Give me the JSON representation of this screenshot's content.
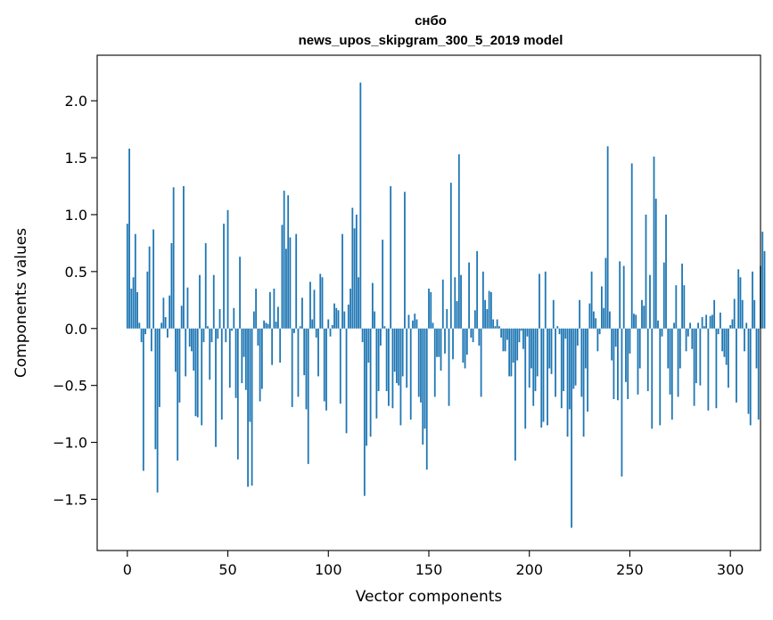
{
  "chart_data": {
    "type": "bar",
    "title": "снбо",
    "subtitle": "news_upos_skipgram_300_5_2019 model",
    "xlabel": "Vector components",
    "ylabel": "Components values",
    "xlim": [
      -15,
      315
    ],
    "ylim": [
      -1.95,
      2.4
    ],
    "xticks": [
      0,
      50,
      100,
      150,
      200,
      250,
      300
    ],
    "yticks": [
      -1.5,
      -1.0,
      -0.5,
      0.0,
      0.5,
      1.0,
      1.5,
      2.0
    ],
    "ytick_labels": [
      "−1.5",
      "−1.0",
      "−0.5",
      "0.0",
      "0.5",
      "1.0",
      "1.5",
      "2.0"
    ],
    "bar_color": "#1f77b4",
    "grid": false,
    "legend": "none",
    "values": [
      0.92,
      1.58,
      0.35,
      0.45,
      0.83,
      0.32,
      0.05,
      -0.12,
      -1.25,
      -0.05,
      0.5,
      0.72,
      -0.2,
      0.87,
      -1.06,
      -1.44,
      -0.69,
      0.05,
      0.27,
      0.1,
      -0.08,
      0.29,
      0.75,
      1.24,
      -0.38,
      -1.16,
      -0.65,
      0.2,
      1.25,
      -0.42,
      0.36,
      -0.16,
      -0.2,
      -0.37,
      -0.77,
      -0.78,
      0.47,
      -0.85,
      -0.12,
      0.75,
      0.02,
      -0.45,
      -0.12,
      0.47,
      -1.04,
      -0.09,
      0.17,
      -0.8,
      0.92,
      -0.12,
      1.04,
      -0.52,
      -0.02,
      0.18,
      -0.61,
      -1.15,
      0.63,
      -0.48,
      -0.25,
      -0.54,
      -1.39,
      -0.82,
      -1.38,
      0.15,
      0.35,
      -0.15,
      -0.64,
      -0.53,
      0.07,
      0.05,
      0.04,
      0.32,
      -0.32,
      0.35,
      0.06,
      0.19,
      -0.3,
      0.91,
      1.21,
      0.7,
      1.17,
      0.8,
      -0.69,
      -0.04,
      0.83,
      -0.6,
      0.02,
      0.27,
      -0.41,
      -0.71,
      -1.19,
      0.41,
      0.08,
      0.34,
      -0.08,
      -0.42,
      0.48,
      0.45,
      -0.64,
      -0.72,
      0.08,
      -0.07,
      0.03,
      0.22,
      0.18,
      0.16,
      -0.66,
      0.83,
      0.15,
      -0.92,
      0.21,
      0.35,
      1.06,
      0.88,
      1.0,
      0.45,
      2.16,
      -0.12,
      -1.47,
      -1.03,
      -0.3,
      -0.95,
      0.4,
      0.15,
      -0.79,
      -0.55,
      -0.15,
      0.78,
      0.02,
      -0.55,
      -0.68,
      1.25,
      -0.7,
      -0.38,
      -0.48,
      -0.5,
      -0.85,
      -0.42,
      1.2,
      -0.52,
      0.12,
      -0.8,
      0.07,
      0.13,
      0.08,
      -0.6,
      -0.65,
      -1.02,
      -0.88,
      -1.24,
      0.35,
      0.32,
      0.05,
      -0.6,
      -0.25,
      -0.25,
      -0.37,
      0.43,
      -0.22,
      0.17,
      -0.68,
      1.28,
      -0.27,
      0.45,
      0.24,
      1.53,
      0.47,
      -0.3,
      -0.35,
      -0.23,
      0.58,
      -0.08,
      -0.12,
      0.16,
      0.68,
      -0.15,
      -0.6,
      0.5,
      0.25,
      0.17,
      0.33,
      0.32,
      0.08,
      0.02,
      0.08,
      0.02,
      -0.08,
      -0.2,
      -0.2,
      -0.1,
      -0.42,
      -0.42,
      -0.3,
      -1.16,
      -0.28,
      -0.12,
      -0.02,
      -0.18,
      -0.88,
      -0.07,
      -0.52,
      -0.35,
      -0.68,
      -0.55,
      -0.42,
      0.48,
      -0.87,
      -0.82,
      0.5,
      -0.85,
      -0.35,
      -0.4,
      0.25,
      -0.6,
      0.02,
      -0.05,
      -0.7,
      -0.55,
      -0.09,
      -0.95,
      -0.71,
      -1.75,
      -0.53,
      -0.5,
      -0.15,
      0.25,
      -0.6,
      -0.95,
      -0.35,
      -0.73,
      0.22,
      0.5,
      0.15,
      0.09,
      -0.2,
      -0.05,
      0.37,
      0.18,
      0.62,
      1.6,
      0.15,
      -0.28,
      -0.62,
      -0.16,
      -0.63,
      0.59,
      -1.3,
      0.55,
      -0.47,
      -0.62,
      -0.22,
      1.45,
      0.13,
      0.12,
      -0.58,
      -0.35,
      0.25,
      0.2,
      1.0,
      -0.55,
      0.47,
      -0.88,
      1.51,
      1.14,
      0.07,
      -0.85,
      -0.07,
      0.58,
      1.0,
      -0.35,
      -0.58,
      -0.8,
      0.05,
      0.38,
      -0.6,
      -0.35,
      0.57,
      0.38,
      -0.2,
      -0.07,
      0.05,
      -0.18,
      -0.68,
      -0.48,
      0.05,
      -0.5,
      0.1,
      0.02,
      0.12,
      -0.72,
      0.11,
      0.12,
      0.25,
      -0.7,
      -0.05,
      0.14,
      -0.2,
      -0.25,
      -0.32,
      -0.52,
      0.03,
      0.08,
      0.26,
      -0.65,
      0.52,
      0.45,
      0.25,
      -0.2,
      0.05,
      -0.75,
      -0.85,
      0.5,
      0.25,
      -0.35,
      -0.8,
      0.55,
      0.85,
      0.68
    ]
  }
}
